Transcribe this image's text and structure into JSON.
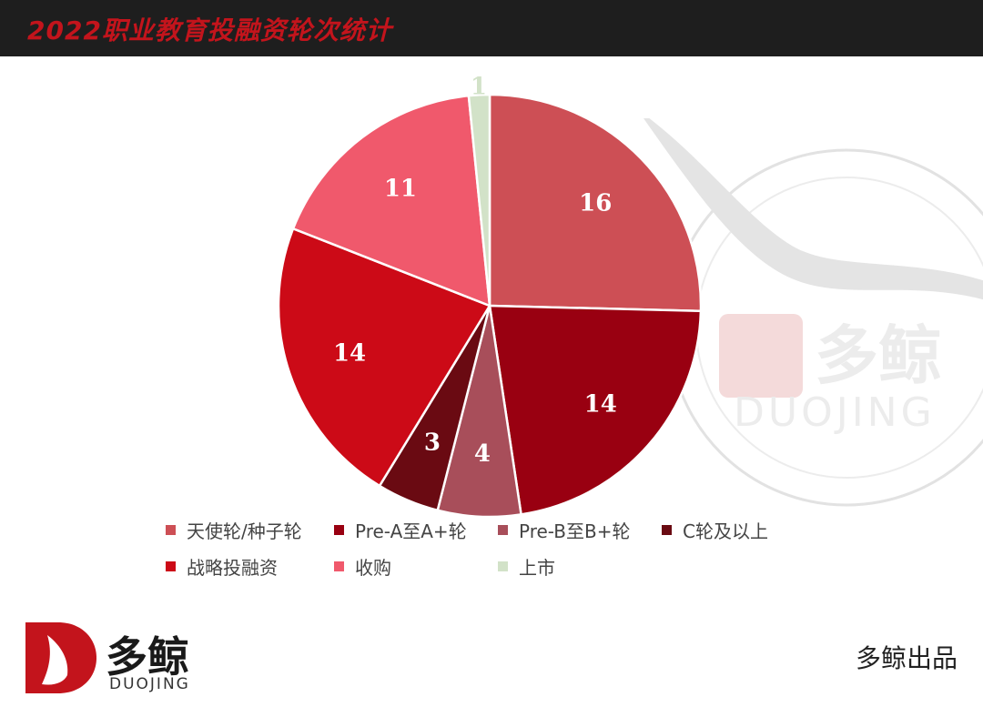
{
  "header": {
    "title": "2022职业教育投融资轮次统计"
  },
  "chart_data": {
    "type": "pie",
    "title": "2022职业教育投融资轮次统计",
    "slices": [
      {
        "label": "天使轮/种子轮",
        "value": 16,
        "color": "#cd4f55"
      },
      {
        "label": "Pre-A至A+轮",
        "value": 14,
        "color": "#990011"
      },
      {
        "label": "Pre-B至B+轮",
        "value": 4,
        "color": "#a84e5a"
      },
      {
        "label": "C轮及以上",
        "value": 3,
        "color": "#6a0a12"
      },
      {
        "label": "战略投融资",
        "value": 14,
        "color": "#cc0a17"
      },
      {
        "label": "收购",
        "value": 11,
        "color": "#f0596c"
      },
      {
        "label": "上市",
        "value": 1,
        "color": "#d2e2c8"
      }
    ],
    "legend_position": "bottom"
  },
  "watermark": {
    "name": "多鲸",
    "en": "DUOJING"
  },
  "brand": {
    "name": "多鲸",
    "en": "DUOJING"
  },
  "footer": {
    "credit": "多鲸出品"
  },
  "icons": {
    "brand_mark": "duojing-whale-logo"
  }
}
